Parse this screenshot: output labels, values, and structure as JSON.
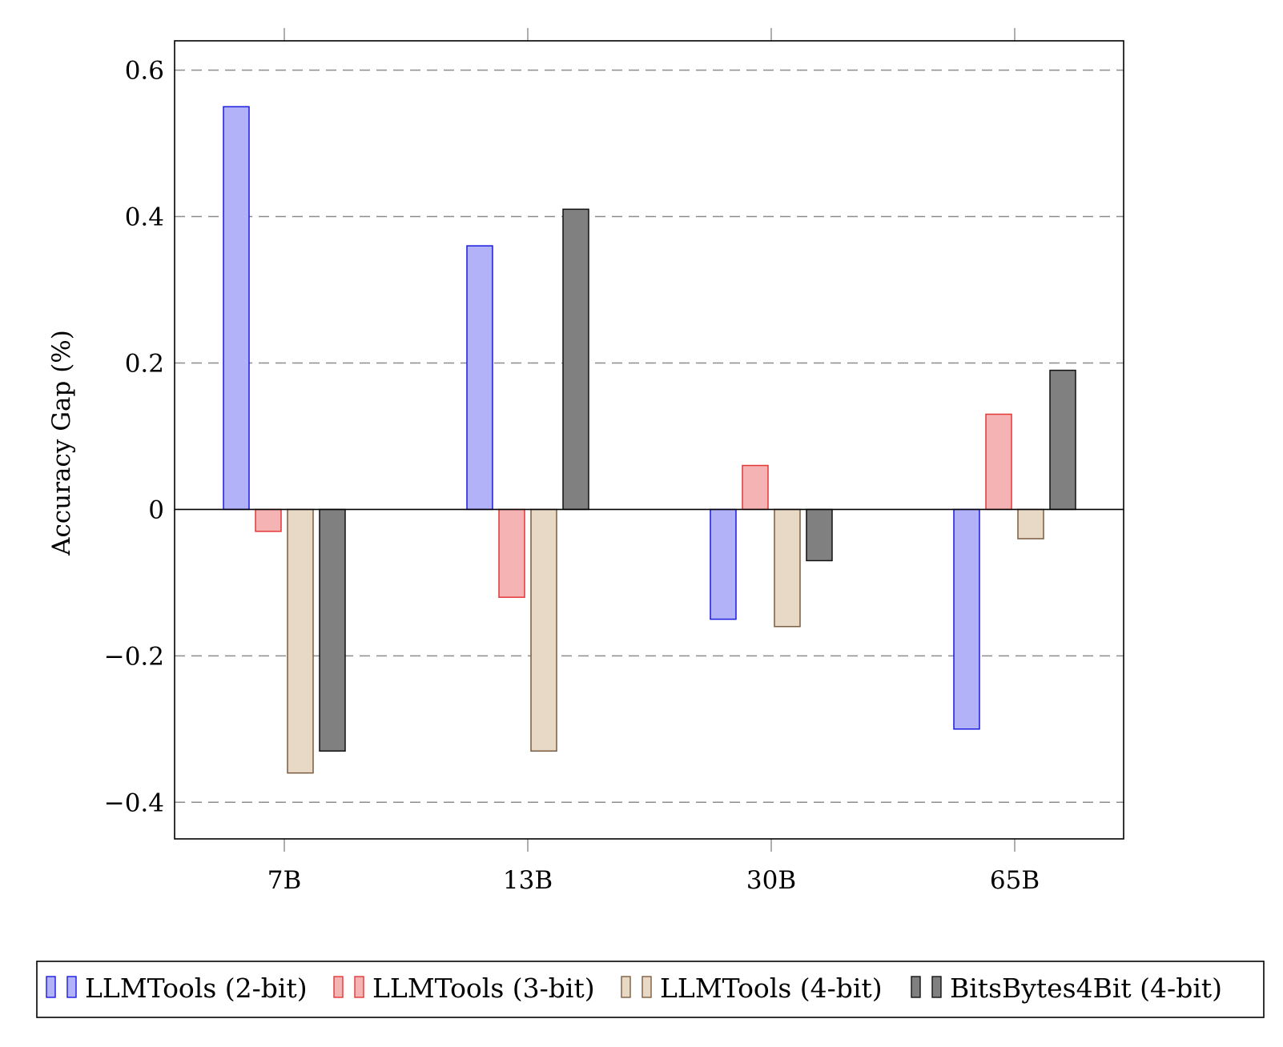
{
  "chart_data": {
    "type": "bar",
    "categories": [
      "7B",
      "13B",
      "30B",
      "65B"
    ],
    "series": [
      {
        "name": "LLMTools (2-bit)",
        "values": [
          0.55,
          0.36,
          -0.15,
          -0.3
        ],
        "fill": "#b2b2f8",
        "stroke": "#1a1adf"
      },
      {
        "name": "LLMTools (3-bit)",
        "values": [
          -0.03,
          -0.12,
          0.06,
          0.13
        ],
        "fill": "#f5b3b3",
        "stroke": "#e23838"
      },
      {
        "name": "LLMTools (4-bit)",
        "values": [
          -0.36,
          -0.33,
          -0.16,
          -0.04
        ],
        "fill": "#e8d9c6",
        "stroke": "#7a5c40"
      },
      {
        "name": "BitsBytes4Bit (4-bit)",
        "values": [
          -0.33,
          0.41,
          -0.07,
          0.19
        ],
        "fill": "#808080",
        "stroke": "#111111"
      }
    ],
    "ylabel": "Accuracy Gap (%)",
    "xlabel": "",
    "ylim": [
      -0.45,
      0.64
    ],
    "yticks": [
      {
        "value": -0.4,
        "label": "−0.4"
      },
      {
        "value": -0.2,
        "label": "−0.2"
      },
      {
        "value": 0,
        "label": "0"
      },
      {
        "value": 0.2,
        "label": "0.2"
      },
      {
        "value": 0.4,
        "label": "0.4"
      },
      {
        "value": 0.6,
        "label": "0.6"
      }
    ],
    "grid": "horizontal dashed",
    "legend_position": "bottom"
  }
}
